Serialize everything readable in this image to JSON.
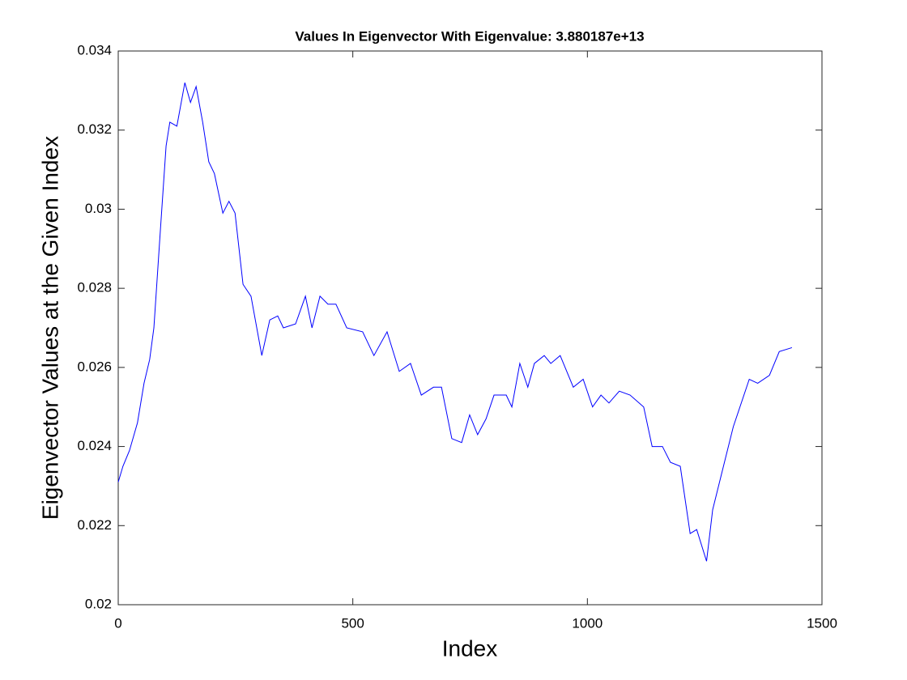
{
  "chart_data": {
    "type": "line",
    "title": "Values In Eigenvector With Eigenvalue: 3.880187e+13",
    "x_label": "Index",
    "y_label": "Eigenvector Values at the Given Index",
    "xlim": [
      0,
      1500
    ],
    "ylim": [
      0.02,
      0.034
    ],
    "xticks": [
      0,
      500,
      1000,
      1500
    ],
    "yticks": [
      0.02,
      0.022,
      0.024,
      0.026,
      0.028,
      0.03,
      0.032,
      0.034
    ],
    "grid": false,
    "series": [
      {
        "color": "#0000ff",
        "x": [
          0,
          10,
          24,
          41,
          55,
          67,
          76,
          90,
          102,
          110,
          125,
          142,
          154,
          166,
          180,
          193,
          205,
          223,
          236,
          249,
          266,
          283,
          306,
          323,
          340,
          352,
          378,
          399,
          413,
          430,
          447,
          464,
          487,
          521,
          545,
          573,
          599,
          623,
          646,
          672,
          689,
          711,
          732,
          749,
          766,
          784,
          801,
          827,
          839,
          856,
          873,
          887,
          908,
          922,
          942,
          970,
          991,
          1011,
          1029,
          1046,
          1068,
          1091,
          1120,
          1138,
          1160,
          1177,
          1198,
          1219,
          1233,
          1254,
          1267,
          1290,
          1311,
          1345,
          1363,
          1388,
          1409,
          1436
        ],
        "values": [
          0.0231,
          0.0235,
          0.0239,
          0.0246,
          0.0256,
          0.0262,
          0.027,
          0.0295,
          0.0316,
          0.0322,
          0.0321,
          0.0332,
          0.0327,
          0.0331,
          0.0322,
          0.0312,
          0.0309,
          0.0299,
          0.0302,
          0.0299,
          0.0281,
          0.0278,
          0.0263,
          0.0272,
          0.0273,
          0.027,
          0.0271,
          0.0278,
          0.027,
          0.0278,
          0.0276,
          0.0276,
          0.027,
          0.0269,
          0.0263,
          0.0269,
          0.0259,
          0.0261,
          0.0253,
          0.0255,
          0.0255,
          0.0242,
          0.0241,
          0.0248,
          0.0243,
          0.0247,
          0.0253,
          0.0253,
          0.025,
          0.0261,
          0.0255,
          0.0261,
          0.0263,
          0.0261,
          0.0263,
          0.0255,
          0.0257,
          0.025,
          0.0253,
          0.0251,
          0.0254,
          0.0253,
          0.025,
          0.024,
          0.024,
          0.0236,
          0.0235,
          0.0218,
          0.0219,
          0.0211,
          0.0224,
          0.0235,
          0.0245,
          0.0257,
          0.0256,
          0.0258,
          0.0264,
          0.0265
        ]
      }
    ]
  }
}
